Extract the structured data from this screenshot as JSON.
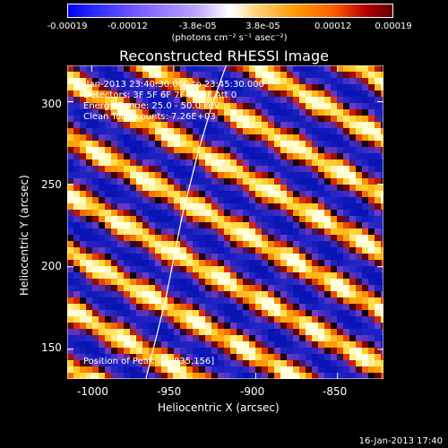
{
  "colorbar": {
    "ticks": [
      "-0.00019",
      "-0.00012",
      "-3.8e-05",
      "3.8e-05",
      "0.00012",
      "0.00019"
    ],
    "units": "(photons cm⁻² s⁻¹ asec⁻²)"
  },
  "title": "Reconstructed RHESSI Image",
  "annotations": [
    "9-Jan-2013 23:40:30.000 to 23:45:30.000",
    "Detectors: 3F 5F 6F 7F 8F 9F   Att 0",
    "Energy Range: 25.0 - 50.0 keV",
    "Clean      Total counts: 7.26E+03"
  ],
  "peak_label": "Position of Peak = [-835,156]",
  "timestamp": "16-Jan-2013 17:40",
  "x_axis": {
    "label": "Heliocentric X (arcsec)",
    "ticks": [
      "-1000",
      "-950",
      "-900",
      "-850"
    ]
  },
  "y_axis": {
    "label": "Heliocentric Y (arcsec)",
    "ticks": [
      "300",
      "250",
      "200",
      "150"
    ]
  },
  "chart_data": {
    "type": "heatmap",
    "title": "Reconstructed RHESSI Image",
    "xlabel": "Heliocentric X (arcsec)",
    "ylabel": "Heliocentric Y (arcsec)",
    "xlim": [
      -1015,
      -822
    ],
    "ylim": [
      132,
      322
    ],
    "colorbar_range": [
      -0.00019,
      0.00019
    ],
    "colorbar_ticks": [
      -0.00019,
      -0.00012,
      -3.8e-05,
      3.8e-05,
      0.00012,
      0.00019
    ],
    "peak_position": [
      -835,
      156
    ],
    "limb_curve": {
      "x": [
        -967,
        -955,
        -945,
        -935,
        -926,
        -918
      ],
      "y": [
        132,
        180,
        230,
        270,
        300,
        322
      ]
    }
  }
}
